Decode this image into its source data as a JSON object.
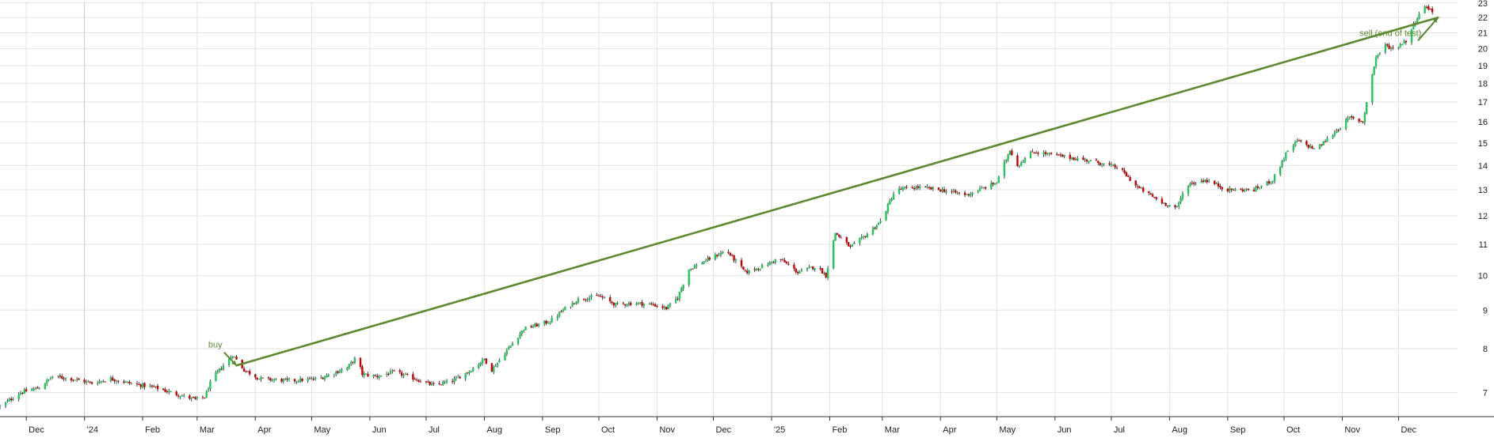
{
  "chart_data": {
    "type": "candlestick",
    "scale": "log",
    "ylim": [
      6.5,
      23.1
    ],
    "xlim": [
      "2023-11-17",
      "2025-12-24"
    ],
    "grid": true,
    "colors": {
      "up": "#22c55e",
      "down": "#cc0000",
      "trade_line": "#5b8a2e",
      "grid": "#e3e3e3",
      "axis": "#333333",
      "text": "#222222"
    },
    "x_ticks": [
      {
        "date": "2023-12-01",
        "label": "Dec"
      },
      {
        "date": "2024-01-01",
        "label": "'24"
      },
      {
        "date": "2024-02-01",
        "label": "Feb"
      },
      {
        "date": "2024-03-01",
        "label": "Mar"
      },
      {
        "date": "2024-04-01",
        "label": "Apr"
      },
      {
        "date": "2024-05-01",
        "label": "May"
      },
      {
        "date": "2024-06-01",
        "label": "Jun"
      },
      {
        "date": "2024-07-01",
        "label": "Jul"
      },
      {
        "date": "2024-08-01",
        "label": "Aug"
      },
      {
        "date": "2024-09-01",
        "label": "Sep"
      },
      {
        "date": "2024-10-01",
        "label": "Oct"
      },
      {
        "date": "2024-11-01",
        "label": "Nov"
      },
      {
        "date": "2024-12-01",
        "label": "Dec"
      },
      {
        "date": "2025-01-01",
        "label": "'25"
      },
      {
        "date": "2025-02-01",
        "label": "Feb"
      },
      {
        "date": "2025-03-01",
        "label": "Mar"
      },
      {
        "date": "2025-04-01",
        "label": "Apr"
      },
      {
        "date": "2025-05-01",
        "label": "May"
      },
      {
        "date": "2025-06-01",
        "label": "Jun"
      },
      {
        "date": "2025-07-01",
        "label": "Jul"
      },
      {
        "date": "2025-08-01",
        "label": "Aug"
      },
      {
        "date": "2025-09-01",
        "label": "Sep"
      },
      {
        "date": "2025-10-01",
        "label": "Oct"
      },
      {
        "date": "2025-11-01",
        "label": "Nov"
      },
      {
        "date": "2025-12-01",
        "label": "Dec"
      }
    ],
    "y_ticks": [
      7,
      8,
      9,
      10,
      11,
      12,
      13,
      14,
      15,
      16,
      17,
      18,
      19,
      20,
      21,
      22,
      23
    ],
    "price_path": [
      [
        "2023-11-17",
        6.7
      ],
      [
        "2023-11-28",
        7.0
      ],
      [
        "2023-12-08",
        7.1
      ],
      [
        "2023-12-15",
        7.35
      ],
      [
        "2023-12-25",
        7.3
      ],
      [
        "2024-01-05",
        7.2
      ],
      [
        "2024-01-15",
        7.3
      ],
      [
        "2024-01-25",
        7.2
      ],
      [
        "2024-02-08",
        7.1
      ],
      [
        "2024-02-20",
        6.95
      ],
      [
        "2024-02-29",
        6.85
      ],
      [
        "2024-03-05",
        6.9
      ],
      [
        "2024-03-09",
        7.3
      ],
      [
        "2024-03-15",
        7.6
      ],
      [
        "2024-03-20",
        7.85
      ],
      [
        "2024-03-26",
        7.5
      ],
      [
        "2024-04-03",
        7.3
      ],
      [
        "2024-04-20",
        7.25
      ],
      [
        "2024-05-05",
        7.3
      ],
      [
        "2024-05-20",
        7.55
      ],
      [
        "2024-05-25",
        7.8
      ],
      [
        "2024-05-28",
        7.4
      ],
      [
        "2024-06-05",
        7.35
      ],
      [
        "2024-06-14",
        7.45
      ],
      [
        "2024-06-25",
        7.3
      ],
      [
        "2024-07-05",
        7.15
      ],
      [
        "2024-07-15",
        7.25
      ],
      [
        "2024-07-25",
        7.5
      ],
      [
        "2024-08-01",
        7.75
      ],
      [
        "2024-08-05",
        7.5
      ],
      [
        "2024-08-12",
        7.9
      ],
      [
        "2024-08-22",
        8.5
      ],
      [
        "2024-09-05",
        8.7
      ],
      [
        "2024-09-12",
        9.0
      ],
      [
        "2024-09-20",
        9.3
      ],
      [
        "2024-10-01",
        9.4
      ],
      [
        "2024-10-10",
        9.15
      ],
      [
        "2024-10-20",
        9.2
      ],
      [
        "2024-10-30",
        9.15
      ],
      [
        "2024-11-06",
        9.05
      ],
      [
        "2024-11-12",
        9.35
      ],
      [
        "2024-11-18",
        10.2
      ],
      [
        "2024-11-28",
        10.5
      ],
      [
        "2024-12-08",
        10.8
      ],
      [
        "2024-12-18",
        10.1
      ],
      [
        "2024-12-28",
        10.3
      ],
      [
        "2025-01-05",
        10.55
      ],
      [
        "2025-01-15",
        10.1
      ],
      [
        "2025-01-25",
        10.3
      ],
      [
        "2025-01-30",
        10.0
      ],
      [
        "2025-02-04",
        11.4
      ],
      [
        "2025-02-12",
        10.9
      ],
      [
        "2025-02-20",
        11.3
      ],
      [
        "2025-02-28",
        11.8
      ],
      [
        "2025-03-08",
        13.0
      ],
      [
        "2025-03-20",
        13.1
      ],
      [
        "2025-04-01",
        13.0
      ],
      [
        "2025-04-15",
        12.8
      ],
      [
        "2025-04-25",
        13.1
      ],
      [
        "2025-05-01",
        13.3
      ],
      [
        "2025-05-08",
        14.7
      ],
      [
        "2025-05-12",
        14.0
      ],
      [
        "2025-05-20",
        14.6
      ],
      [
        "2025-06-05",
        14.4
      ],
      [
        "2025-06-20",
        14.2
      ],
      [
        "2025-07-05",
        13.9
      ],
      [
        "2025-07-15",
        13.1
      ],
      [
        "2025-07-28",
        12.5
      ],
      [
        "2025-08-05",
        12.3
      ],
      [
        "2025-08-10",
        13.2
      ],
      [
        "2025-08-20",
        13.4
      ],
      [
        "2025-09-01",
        13.0
      ],
      [
        "2025-09-15",
        13.0
      ],
      [
        "2025-09-25",
        13.4
      ],
      [
        "2025-10-02",
        14.5
      ],
      [
        "2025-10-08",
        15.1
      ],
      [
        "2025-10-18",
        14.7
      ],
      [
        "2025-10-28",
        15.5
      ],
      [
        "2025-11-05",
        16.2
      ],
      [
        "2025-11-12",
        16.0
      ],
      [
        "2025-11-15",
        17.5
      ],
      [
        "2025-11-19",
        19.5
      ],
      [
        "2025-11-24",
        20.2
      ],
      [
        "2025-11-28",
        20.0
      ],
      [
        "2025-12-05",
        20.5
      ],
      [
        "2025-12-12",
        22.3
      ],
      [
        "2025-12-16",
        22.8
      ],
      [
        "2025-12-21",
        22.1
      ]
    ],
    "annotations": [
      {
        "label": "buy",
        "date": "2024-03-22",
        "value": 7.6,
        "text_date": "2024-03-12",
        "text_value": 7.95
      },
      {
        "label": "sell (end of test)",
        "date": "2025-12-22",
        "value": 22.0,
        "text_date": "2025-12-08",
        "text_value": 20.6
      }
    ],
    "trade_line": {
      "from": [
        "2024-03-22",
        7.6
      ],
      "to": [
        "2025-12-22",
        22.0
      ]
    }
  }
}
